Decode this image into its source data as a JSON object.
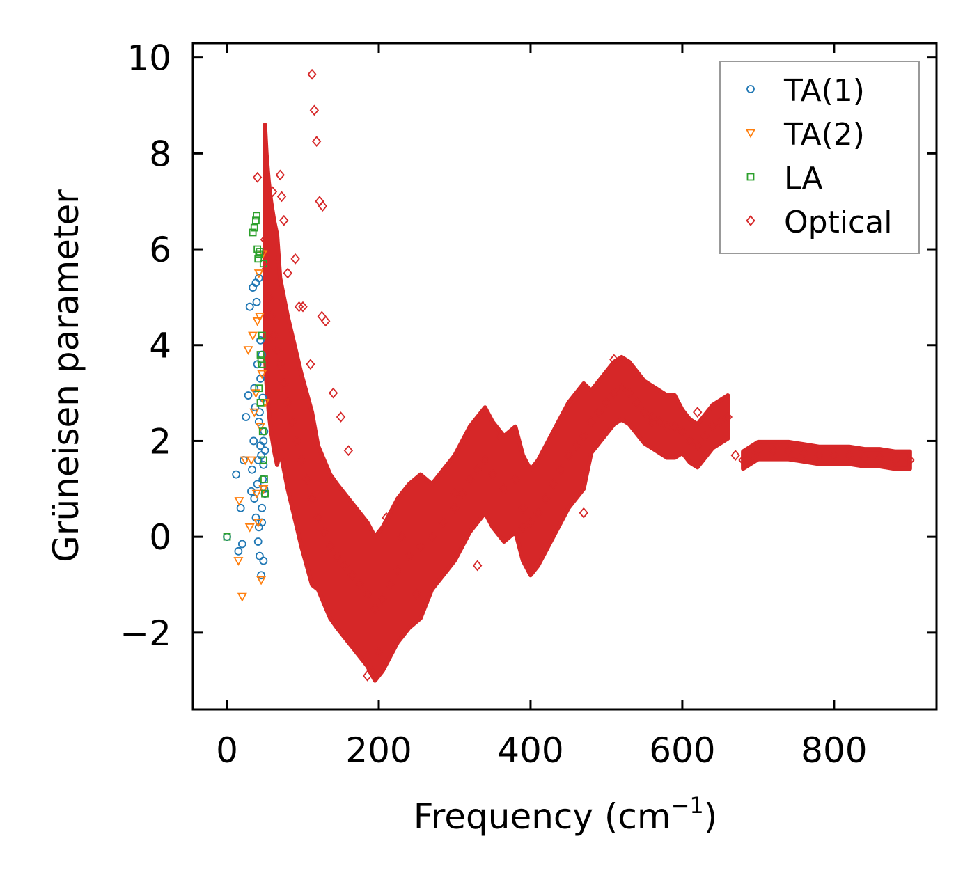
{
  "chart_data": {
    "type": "scatter",
    "title": "",
    "xlabel": "Frequency (cm",
    "xlabel_sup": "−1",
    "xlabel_suffix": ")",
    "ylabel": "Grüneisen parameter",
    "xlim": [
      -45,
      935
    ],
    "ylim": [
      -3.6,
      10.3
    ],
    "xticks": [
      0,
      200,
      400,
      600,
      800
    ],
    "xtick_labels": [
      "0",
      "200",
      "400",
      "600",
      "800"
    ],
    "yticks": [
      -2,
      0,
      2,
      4,
      6,
      8,
      10
    ],
    "ytick_labels": [
      "−2",
      "0",
      "2",
      "4",
      "6",
      "8",
      "10"
    ],
    "grid": false,
    "legend_position": "top-right",
    "series": [
      {
        "name": "TA(1)",
        "marker": "circle",
        "color": "#1f77b4",
        "x": [
          0,
          12,
          15,
          18,
          20,
          22,
          25,
          28,
          30,
          32,
          34,
          35,
          36,
          38,
          40,
          40,
          42,
          42,
          44,
          45,
          46,
          47,
          48,
          48,
          49,
          50,
          50,
          38,
          41,
          44,
          46,
          43,
          47,
          39,
          45,
          48,
          36,
          33,
          37,
          42,
          44,
          46,
          49,
          41,
          43
        ],
        "y": [
          0.0,
          1.3,
          -0.3,
          0.6,
          -0.15,
          1.6,
          2.5,
          2.95,
          4.8,
          0.95,
          5.2,
          2.0,
          3.1,
          5.3,
          3.6,
          1.1,
          5.4,
          2.4,
          4.1,
          1.7,
          0.3,
          2.9,
          1.5,
          -0.5,
          2.2,
          0.9,
          1.8,
          0.4,
          -0.1,
          3.3,
          0.6,
          2.6,
          1.2,
          4.9,
          -0.8,
          2.0,
          0.8,
          1.4,
          2.7,
          0.2,
          1.9,
          3.8,
          1.0,
          1.6,
          -0.4
        ]
      },
      {
        "name": "TA(2)",
        "marker": "triangle-down",
        "color": "#ff7f0e",
        "x": [
          15,
          16,
          20,
          24,
          28,
          30,
          32,
          34,
          36,
          38,
          40,
          41,
          42,
          44,
          45,
          46,
          48,
          50,
          43,
          47,
          39
        ],
        "y": [
          -0.5,
          0.75,
          -1.25,
          1.6,
          3.9,
          0.2,
          1.6,
          4.2,
          2.6,
          3.0,
          4.5,
          0.3,
          5.5,
          2.3,
          -0.9,
          3.4,
          1.0,
          2.8,
          4.6,
          5.9,
          0.9
        ]
      },
      {
        "name": "LA",
        "marker": "square",
        "color": "#2ca02c",
        "x": [
          0,
          34,
          36,
          38,
          39,
          40,
          41,
          42,
          43,
          44,
          45,
          46,
          47,
          48,
          49,
          50,
          44,
          46,
          48,
          42
        ],
        "y": [
          0.0,
          6.35,
          6.45,
          6.6,
          6.7,
          6.0,
          5.8,
          5.9,
          5.95,
          3.8,
          3.7,
          3.6,
          2.2,
          1.6,
          1.2,
          0.9,
          2.8,
          4.2,
          5.7,
          3.1
        ]
      },
      {
        "name": "Optical",
        "marker": "diamond",
        "color": "#d62728",
        "x": [
          50,
          52,
          55,
          58,
          62,
          66,
          70,
          75,
          80,
          86,
          92,
          98,
          105,
          112,
          120,
          128,
          136,
          145,
          155,
          165,
          175,
          185,
          195,
          205,
          215,
          225,
          240,
          255,
          270,
          285,
          300,
          310,
          320,
          330,
          340,
          350,
          365,
          380,
          390,
          400,
          410,
          420,
          430,
          440,
          450,
          460,
          470,
          480,
          490,
          500,
          510,
          520,
          530,
          540,
          550,
          560,
          570,
          580,
          590,
          600,
          610,
          620,
          630,
          640,
          650,
          660,
          670,
          680,
          690,
          700,
          720,
          740,
          760,
          780,
          800,
          820,
          840,
          860,
          880,
          900,
          112,
          115,
          118,
          122,
          126,
          70,
          72,
          75,
          90,
          100,
          110,
          125,
          130,
          140,
          150,
          185,
          200,
          160,
          190,
          210,
          230,
          250,
          300,
          330,
          360,
          390,
          470,
          510,
          560,
          620,
          40,
          60,
          80,
          95
        ],
        "y": [
          6.2,
          5.6,
          5.0,
          4.6,
          4.2,
          3.9,
          3.6,
          3.2,
          2.8,
          2.4,
          2.0,
          1.6,
          1.2,
          0.8,
          0.4,
          0.1,
          -0.2,
          -0.4,
          -0.6,
          -0.8,
          -1.0,
          -1.2,
          -1.5,
          -1.3,
          -1.0,
          -0.7,
          -0.4,
          -0.2,
          0.0,
          0.3,
          0.6,
          0.9,
          1.2,
          1.4,
          1.6,
          1.3,
          1.0,
          1.2,
          0.6,
          0.3,
          0.5,
          0.8,
          1.1,
          1.4,
          1.7,
          1.9,
          2.1,
          2.4,
          2.6,
          2.8,
          3.0,
          3.1,
          3.0,
          2.8,
          2.6,
          2.5,
          2.4,
          2.3,
          2.3,
          2.2,
          2.0,
          1.9,
          2.1,
          2.3,
          2.4,
          2.5,
          1.7,
          1.6,
          1.7,
          1.8,
          1.8,
          1.8,
          1.75,
          1.7,
          1.7,
          1.7,
          1.65,
          1.65,
          1.6,
          1.6,
          9.65,
          8.9,
          8.25,
          7.0,
          6.9,
          7.55,
          7.1,
          6.6,
          5.8,
          4.8,
          3.6,
          4.6,
          4.5,
          3.0,
          2.5,
          -2.9,
          -2.4,
          1.8,
          -2.8,
          0.4,
          0.0,
          -1.2,
          0.9,
          -0.6,
          2.1,
          0.2,
          0.5,
          3.7,
          2.4,
          2.6,
          7.5,
          7.2,
          5.5,
          4.8
        ]
      }
    ]
  }
}
